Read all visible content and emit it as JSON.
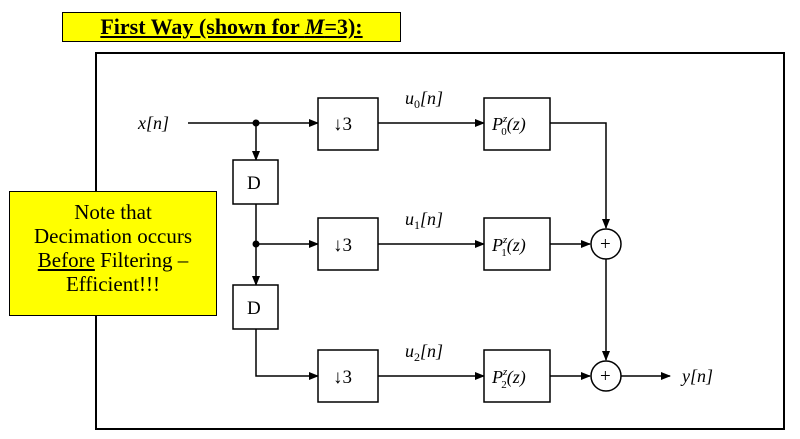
{
  "title": {
    "prefix": "First Way (shown for ",
    "var": "M",
    "suffix": "=3):"
  },
  "note": {
    "line1": "Note that",
    "line2": "Decimation occurs",
    "line3_underlined": "Before",
    "line3_rest": " Filtering –",
    "line4": "Efficient!!!"
  },
  "diagram": {
    "input_label": "x[n]",
    "output_label": "y[n]",
    "delay_label": "D",
    "decimator_label": "↓3",
    "adder_symbol": "+",
    "branches": [
      {
        "u_label": "u",
        "u_sub": "0",
        "u_arg": "[n]",
        "filter": "P",
        "filter_sup": "z",
        "filter_sub": "0",
        "filter_arg": "(z)"
      },
      {
        "u_label": "u",
        "u_sub": "1",
        "u_arg": "[n]",
        "filter": "P",
        "filter_sup": "z",
        "filter_sub": "1",
        "filter_arg": "(z)"
      },
      {
        "u_label": "u",
        "u_sub": "2",
        "u_arg": "[n]",
        "filter": "P",
        "filter_sup": "z",
        "filter_sub": "2",
        "filter_arg": "(z)"
      }
    ]
  },
  "colors": {
    "highlight": "#ffff00",
    "line": "#000000"
  }
}
